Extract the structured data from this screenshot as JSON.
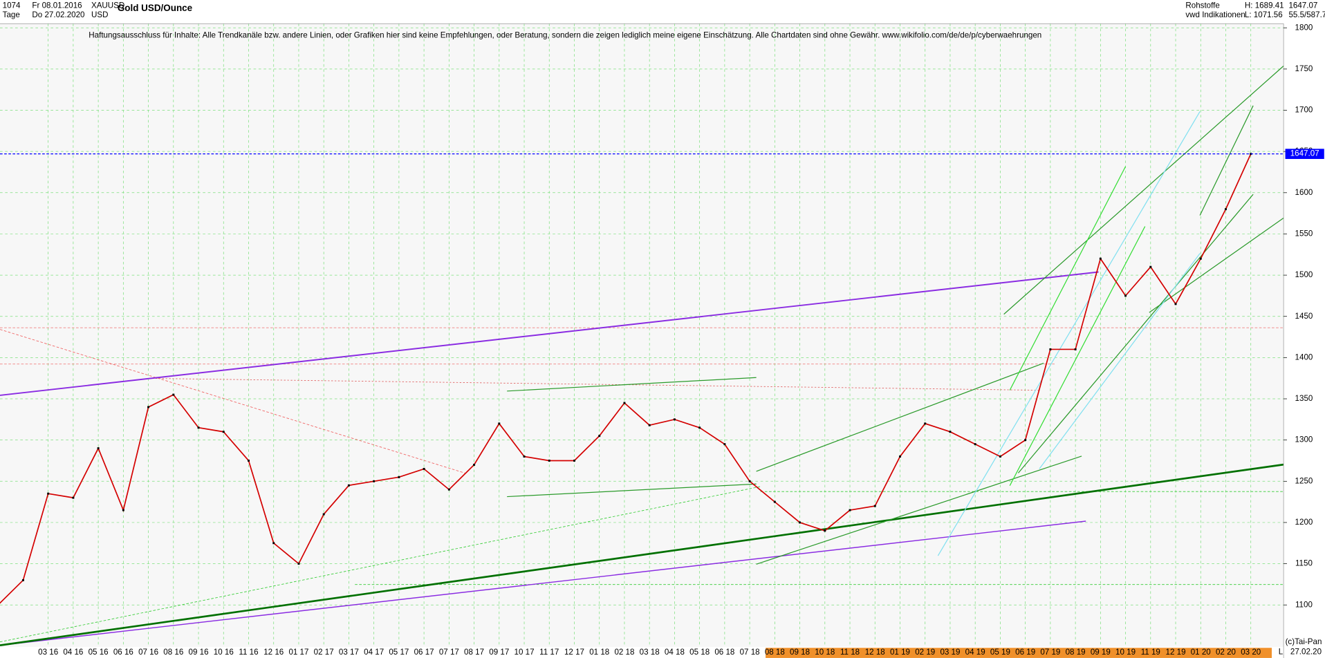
{
  "chart_data": {
    "type": "line",
    "title": "Gold USD/Ounce",
    "header": {
      "count": "1074",
      "start_date": "Fr 08.01.2016",
      "symbol": "XAUUSD",
      "period": "Tage",
      "end_date": "Do 27.02.2020",
      "currency": "USD",
      "market": "Rohstoffe",
      "high": "H: 1689.41",
      "source": "vwd Indikationen",
      "low": "L: 1071.56",
      "scale_info": "55.5/587.7"
    },
    "annotation": "Haftungsausschluss für Inhalte: Alle Trendkanäle bzw. andere Linien, oder Grafiken hier sind keine Empfehlungen, oder Beratung, sondern die zeigen lediglich meine eigene Einschätzung. Alle Chartdaten sind ohne Gewähr.  www.wikifolio.com/de/de/p/cyberwaehrungen",
    "copyright": "(c)Tai-Pan",
    "footer_left": "L",
    "footer_date": "27.02.20",
    "last_price": 1647.07,
    "last_price_color": "#0000ff",
    "categories": [
      null,
      null,
      "03 16",
      "04 16",
      "05 16",
      "06 16",
      "07 16",
      "08 16",
      "09 16",
      "10 16",
      "11 16",
      "12 16",
      "01 17",
      "02 17",
      "03 17",
      "04 17",
      "05 17",
      "06 17",
      "07 17",
      "08 17",
      "09 17",
      "10 17",
      "11 17",
      "12 17",
      "01 18",
      "02 18",
      "03 18",
      "04 18",
      "05 18",
      "06 18",
      "07 18",
      "08 18",
      "09 18",
      "10 18",
      "11 18",
      "12 18",
      "01 19",
      "02 19",
      "03 19",
      "04 19",
      "05 19",
      "06 19",
      "07 19",
      "08 19",
      "09 19",
      "10 19",
      "11 19",
      "12 19",
      "01 20",
      "02 20",
      "03 20"
    ],
    "series": [
      {
        "name": "XAUUSD",
        "color": "#d40000",
        "values": [
          1100,
          1130,
          1235,
          1230,
          1290,
          1215,
          1340,
          1355,
          1315,
          1310,
          1275,
          1175,
          1150,
          1210,
          1245,
          1250,
          1255,
          1265,
          1240,
          1270,
          1320,
          1280,
          1275,
          1275,
          1305,
          1345,
          1318,
          1325,
          1315,
          1295,
          1250,
          1225,
          1200,
          1190,
          1215,
          1220,
          1280,
          1320,
          1310,
          1295,
          1280,
          1300,
          1410,
          1410,
          1520,
          1475,
          1510,
          1465,
          1520,
          1580,
          1647.07
        ]
      }
    ],
    "ylim": [
      1049,
      1805
    ],
    "yticks": [
      1100,
      1150,
      1200,
      1250,
      1300,
      1350,
      1400,
      1450,
      1500,
      1550,
      1600,
      1650,
      1700,
      1750,
      1800
    ],
    "grid": true
  }
}
